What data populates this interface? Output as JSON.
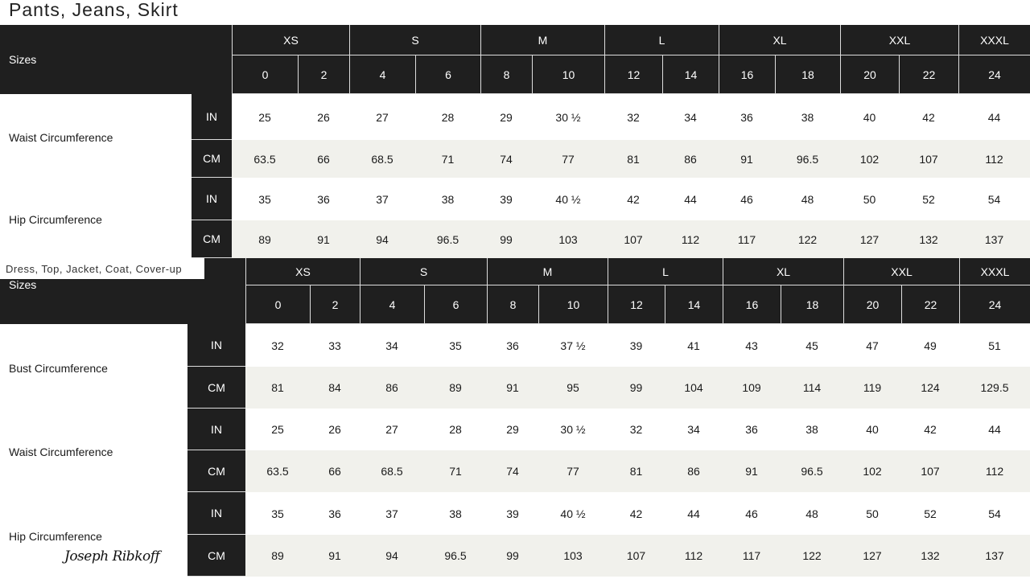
{
  "table1": {
    "title": "Pants, Jeans, Skirt",
    "sizes_label": "Sizes",
    "groups": [
      {
        "label": "XS",
        "numbers": [
          "0",
          "2"
        ]
      },
      {
        "label": "S",
        "numbers": [
          "4",
          "6"
        ]
      },
      {
        "label": "M",
        "numbers": [
          "8",
          "10"
        ]
      },
      {
        "label": "L",
        "numbers": [
          "12",
          "14"
        ]
      },
      {
        "label": "XL",
        "numbers": [
          "16",
          "18"
        ]
      },
      {
        "label": "XXL",
        "numbers": [
          "20",
          "22"
        ]
      },
      {
        "label": "XXXL",
        "numbers": [
          "24"
        ]
      }
    ],
    "measurements": [
      {
        "label": "Waist Circumference",
        "rows": [
          {
            "unit": "IN",
            "values": [
              "25",
              "26",
              "27",
              "28",
              "29",
              "30 ½",
              "32",
              "34",
              "36",
              "38",
              "40",
              "42",
              "44"
            ]
          },
          {
            "unit": "CM",
            "values": [
              "63.5",
              "66",
              "68.5",
              "71",
              "74",
              "77",
              "81",
              "86",
              "91",
              "96.5",
              "102",
              "107",
              "112"
            ]
          }
        ]
      },
      {
        "label": "Hip Circumference",
        "rows": [
          {
            "unit": "IN",
            "values": [
              "35",
              "36",
              "37",
              "38",
              "39",
              "40 ½",
              "42",
              "44",
              "46",
              "48",
              "50",
              "52",
              "54"
            ]
          },
          {
            "unit": "CM",
            "values": [
              "89",
              "91",
              "94",
              "96.5",
              "99",
              "103",
              "107",
              "112",
              "117",
              "122",
              "127",
              "132",
              "137"
            ]
          }
        ]
      }
    ]
  },
  "table2": {
    "title": "Dress, Top, Jacket, Coat, Cover-up",
    "sizes_label": "Sizes",
    "groups": [
      {
        "label": "XS",
        "numbers": [
          "0",
          "2"
        ]
      },
      {
        "label": "S",
        "numbers": [
          "4",
          "6"
        ]
      },
      {
        "label": "M",
        "numbers": [
          "8",
          "10"
        ]
      },
      {
        "label": "L",
        "numbers": [
          "12",
          "14"
        ]
      },
      {
        "label": "XL",
        "numbers": [
          "16",
          "18"
        ]
      },
      {
        "label": "XXL",
        "numbers": [
          "20",
          "22"
        ]
      },
      {
        "label": "XXXL",
        "numbers": [
          "24"
        ]
      }
    ],
    "measurements": [
      {
        "label": "Bust Circumference",
        "rows": [
          {
            "unit": "IN",
            "values": [
              "32",
              "33",
              "34",
              "35",
              "36",
              "37 ½",
              "39",
              "41",
              "43",
              "45",
              "47",
              "49",
              "51"
            ]
          },
          {
            "unit": "CM",
            "values": [
              "81",
              "84",
              "86",
              "89",
              "91",
              "95",
              "99",
              "104",
              "109",
              "114",
              "119",
              "124",
              "129.5"
            ]
          }
        ]
      },
      {
        "label": "Waist Circumference",
        "rows": [
          {
            "unit": "IN",
            "values": [
              "25",
              "26",
              "27",
              "28",
              "29",
              "30 ½",
              "32",
              "34",
              "36",
              "38",
              "40",
              "42",
              "44"
            ]
          },
          {
            "unit": "CM",
            "values": [
              "63.5",
              "66",
              "68.5",
              "71",
              "74",
              "77",
              "81",
              "86",
              "91",
              "96.5",
              "102",
              "107",
              "112"
            ]
          }
        ]
      },
      {
        "label": "Hip Circumference",
        "rows": [
          {
            "unit": "IN",
            "values": [
              "35",
              "36",
              "37",
              "38",
              "39",
              "40 ½",
              "42",
              "44",
              "46",
              "48",
              "50",
              "52",
              "54"
            ]
          },
          {
            "unit": "CM",
            "values": [
              "89",
              "91",
              "94",
              "96.5",
              "99",
              "103",
              "107",
              "112",
              "117",
              "122",
              "127",
              "132",
              "137"
            ]
          }
        ]
      }
    ]
  },
  "brand": {
    "logo_text": "Joseph Ribkoff"
  }
}
